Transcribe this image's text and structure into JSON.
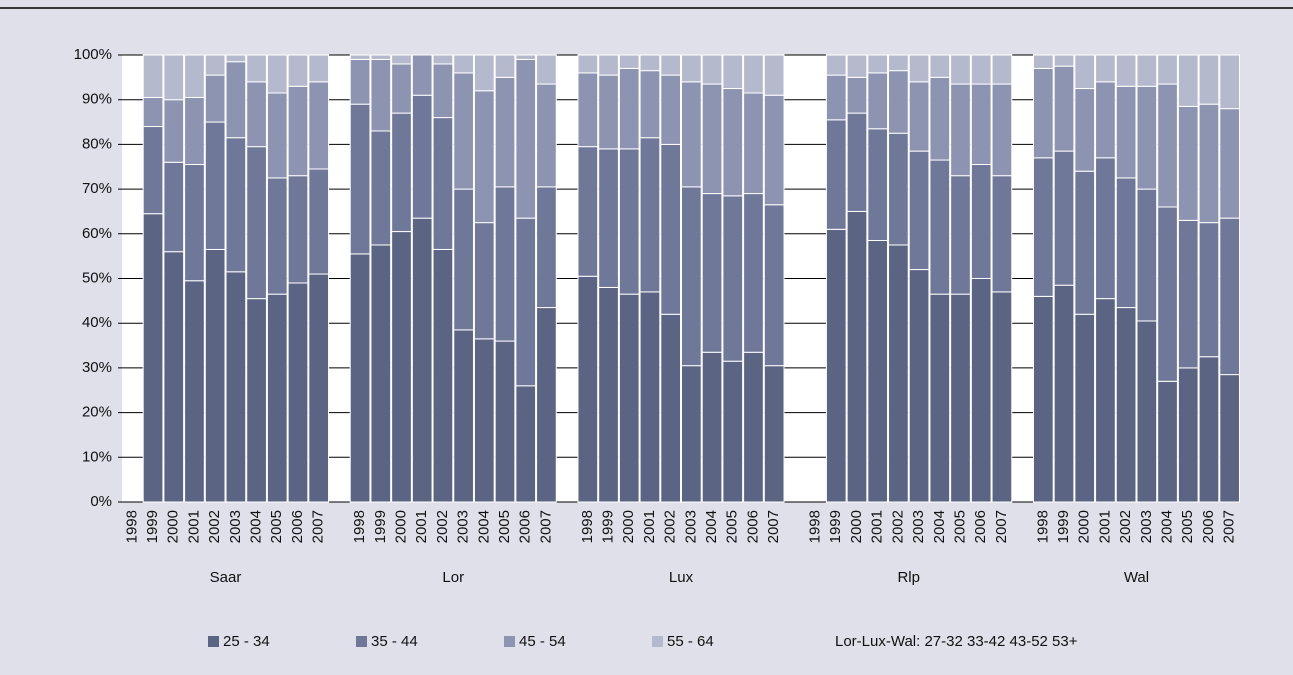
{
  "chart_data": {
    "type": "stacked_bar_100",
    "group_labels": [
      "Saar",
      "Lor",
      "Lux",
      "Rlp",
      "Wal"
    ],
    "categories": [
      "1998",
      "1999",
      "2000",
      "2001",
      "2002",
      "2003",
      "2004",
      "2005",
      "2006",
      "2007",
      "1998",
      "1999",
      "2000",
      "2001",
      "2002",
      "2003",
      "2004",
      "2005",
      "2006",
      "2007",
      "1998",
      "1999",
      "2000",
      "2001",
      "2002",
      "2003",
      "2004",
      "2005",
      "2006",
      "2007",
      "1998",
      "1999",
      "2000",
      "2001",
      "2002",
      "2003",
      "2004",
      "2005",
      "2006",
      "2007",
      "1998",
      "1999",
      "2000",
      "2001",
      "2002",
      "2003",
      "2004",
      "2005",
      "2006",
      "2007"
    ],
    "series": [
      {
        "name": "25 - 34",
        "color": "#5b6482",
        "values": [
          null,
          64.5,
          56,
          49.5,
          56.5,
          51.5,
          45.5,
          46.5,
          49,
          51,
          55.5,
          57.5,
          60.5,
          63.5,
          56.5,
          38.5,
          36.5,
          36,
          26,
          43.5,
          50.5,
          48,
          46.5,
          47,
          42,
          30.5,
          33.5,
          31.5,
          33.5,
          30.5,
          null,
          61,
          65,
          58.5,
          57.5,
          52,
          46.5,
          46.5,
          50,
          47,
          46,
          48.5,
          42,
          45.5,
          43.5,
          40.5,
          27,
          30,
          32.5,
          28.5
        ]
      },
      {
        "name": "35 - 44",
        "color": "#6f7899",
        "values": [
          null,
          19.5,
          20,
          26,
          28.5,
          30,
          34,
          26,
          24,
          23.5,
          33.5,
          25.5,
          26.5,
          27.5,
          29.5,
          31.5,
          26,
          34.5,
          37.5,
          27,
          29,
          31,
          32.5,
          34.5,
          38,
          40,
          35.5,
          37,
          35.5,
          36,
          null,
          24.5,
          22,
          25,
          25,
          26.5,
          30,
          26.5,
          25.5,
          26,
          31,
          30,
          32,
          31.5,
          29,
          29.5,
          39,
          33,
          30,
          35
        ]
      },
      {
        "name": "45 - 54",
        "color": "#8d94b1",
        "values": [
          null,
          6.5,
          14,
          15,
          10.5,
          17,
          14.5,
          19,
          20,
          19.5,
          10,
          16,
          11,
          9,
          12,
          26,
          29.5,
          24.5,
          35.5,
          23,
          16.5,
          16.5,
          18,
          15,
          15.5,
          23.5,
          24.5,
          24,
          22.5,
          24.5,
          null,
          10,
          8,
          12.5,
          14,
          15.5,
          18.5,
          20.5,
          18,
          20.5,
          20,
          19,
          18.5,
          17,
          20.5,
          23,
          27.5,
          25.5,
          26.5,
          24.5
        ]
      },
      {
        "name": "55 - 64",
        "color": "#b5b9cd",
        "values": [
          null,
          9.5,
          10,
          9.5,
          4.5,
          1.5,
          6,
          8.5,
          7,
          6,
          1,
          1,
          2,
          0,
          2,
          4,
          8,
          5,
          1,
          6.5,
          4,
          4.5,
          3,
          3.5,
          4.5,
          6,
          6.5,
          7.5,
          8.5,
          9,
          null,
          4.5,
          5,
          4,
          3.5,
          6,
          5,
          6.5,
          6.5,
          6.5,
          3,
          2.5,
          7.5,
          6,
          7,
          7,
          6.5,
          11.5,
          11,
          12
        ]
      }
    ],
    "ylim": [
      0,
      100
    ],
    "yticks": [
      {
        "value": 0,
        "label": "0%"
      },
      {
        "value": 10,
        "label": "10%"
      },
      {
        "value": 20,
        "label": "20%"
      },
      {
        "value": 30,
        "label": "30%"
      },
      {
        "value": 40,
        "label": "40%"
      },
      {
        "value": 50,
        "label": "50%"
      },
      {
        "value": 60,
        "label": "60%"
      },
      {
        "value": 70,
        "label": "70%"
      },
      {
        "value": 80,
        "label": "80%"
      },
      {
        "value": 90,
        "label": "90%"
      },
      {
        "value": 100,
        "label": "100%"
      }
    ],
    "grid": true,
    "annotation": "Lor-Lux-Wal:  27-32  33-42  43-52  53+"
  }
}
